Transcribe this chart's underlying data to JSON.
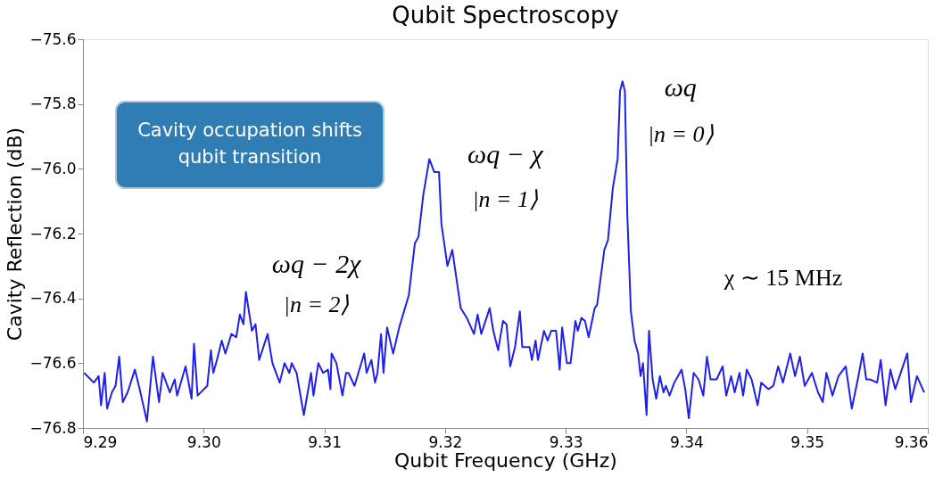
{
  "chart_data": {
    "type": "line",
    "title": "Qubit Spectroscopy",
    "xlabel": "Qubit Frequency (GHz)",
    "ylabel": "Cavity Reflection (dB)",
    "xlim": [
      9.29,
      9.36
    ],
    "xticks": [
      9.29,
      {
        "value": 9.3,
        "label": "9.30"
      },
      9.31,
      9.32,
      9.33,
      9.34,
      9.35,
      9.36
    ],
    "ylim": [
      -76.8,
      -75.6
    ],
    "yticks": [
      -76.8,
      -76.6,
      -76.4,
      -76.2,
      {
        "value": -76.0,
        "label": "−76.0"
      },
      -75.8,
      -75.6
    ],
    "grid": false,
    "marker": "none",
    "line_style": "solid",
    "x": [
      9.2901,
      9.2909,
      9.2913,
      9.2915,
      9.2918,
      9.292,
      9.2924,
      9.2927,
      9.293,
      9.2933,
      9.2937,
      9.2943,
      9.2947,
      9.2953,
      9.2958,
      9.2963,
      9.2966,
      9.2972,
      9.2976,
      9.2978,
      9.2985,
      9.299,
      9.2992,
      9.2995,
      9.3003,
      9.3006,
      9.3008,
      9.3011,
      9.3015,
      9.3018,
      9.3023,
      9.3027,
      9.303,
      9.3033,
      9.3035,
      9.304,
      9.3043,
      9.3046,
      9.3053,
      9.3057,
      9.3063,
      9.3067,
      9.3071,
      9.3073,
      9.3077,
      9.3083,
      9.3089,
      9.3091,
      9.3095,
      9.3099,
      9.3103,
      9.3105,
      9.3106,
      9.311,
      9.3115,
      9.3118,
      9.312,
      9.3125,
      9.3133,
      9.3135,
      9.3139,
      9.3142,
      9.3144,
      9.3147,
      9.3149,
      9.3152,
      9.3157,
      9.3162,
      9.317,
      9.3175,
      9.3178,
      9.3182,
      9.3187,
      9.3191,
      9.3195,
      9.3197,
      9.3202,
      9.3206,
      9.3213,
      9.3218,
      9.3224,
      9.3227,
      9.323,
      9.3237,
      9.324,
      9.3244,
      9.3248,
      9.3251,
      9.3254,
      9.3258,
      9.3262,
      9.3264,
      9.327,
      9.3272,
      9.3275,
      9.3277,
      9.3282,
      9.3285,
      9.3288,
      9.3292,
      9.3295,
      9.3297,
      9.3301,
      9.3304,
      9.3308,
      9.331,
      9.3313,
      9.3316,
      9.3319,
      9.3324,
      9.3326,
      9.3332,
      9.3335,
      9.3339,
      9.3343,
      9.3345,
      9.3347,
      9.3349,
      9.3351,
      9.3354,
      9.3357,
      9.336,
      9.3362,
      9.3364,
      9.3367,
      9.3369,
      9.3372,
      9.3375,
      9.3378,
      9.3381,
      9.3383,
      9.3386,
      9.339,
      9.3396,
      9.3399,
      9.3402,
      9.3406,
      9.341,
      9.3414,
      9.3417,
      9.342,
      9.3425,
      9.343,
      9.3433,
      9.3437,
      9.344,
      9.3444,
      9.3447,
      9.345,
      9.3454,
      9.3459,
      9.3462,
      9.3468,
      9.3472,
      9.3476,
      9.348,
      9.3486,
      9.349,
      9.3494,
      9.3498,
      9.3504,
      9.3509,
      9.3513,
      9.3516,
      9.3521,
      9.3526,
      9.3532,
      9.3537,
      9.3542,
      9.3546,
      9.3549,
      9.3552,
      9.3558,
      9.3561,
      9.3565,
      9.3569,
      9.3573,
      9.3583,
      9.3586,
      9.3591,
      9.3597
    ],
    "series": [
      {
        "color": "#1f1ff0",
        "values": [
          -76.63,
          -76.66,
          -76.64,
          -76.73,
          -76.63,
          -76.74,
          -76.69,
          -76.67,
          -76.58,
          -76.72,
          -76.69,
          -76.62,
          -76.68,
          -76.78,
          -76.58,
          -76.72,
          -76.63,
          -76.69,
          -76.65,
          -76.7,
          -76.61,
          -76.71,
          -76.54,
          -76.7,
          -76.67,
          -76.56,
          -76.63,
          -76.59,
          -76.53,
          -76.57,
          -76.51,
          -76.52,
          -76.45,
          -76.48,
          -76.38,
          -76.5,
          -76.48,
          -76.59,
          -76.51,
          -76.6,
          -76.66,
          -76.6,
          -76.63,
          -76.6,
          -76.63,
          -76.76,
          -76.63,
          -76.7,
          -76.6,
          -76.63,
          -76.62,
          -76.68,
          -76.57,
          -76.6,
          -76.7,
          -76.63,
          -76.63,
          -76.67,
          -76.57,
          -76.63,
          -76.59,
          -76.66,
          -76.63,
          -76.51,
          -76.63,
          -76.49,
          -76.57,
          -76.49,
          -76.39,
          -76.23,
          -76.21,
          -76.08,
          -75.97,
          -76.01,
          -76.01,
          -76.17,
          -76.3,
          -76.25,
          -76.43,
          -76.46,
          -76.51,
          -76.45,
          -76.51,
          -76.43,
          -76.5,
          -76.56,
          -76.47,
          -76.48,
          -76.61,
          -76.55,
          -76.44,
          -76.55,
          -76.55,
          -76.59,
          -76.53,
          -76.59,
          -76.5,
          -76.53,
          -76.5,
          -76.5,
          -76.62,
          -76.49,
          -76.6,
          -76.6,
          -76.47,
          -76.5,
          -76.46,
          -76.47,
          -76.52,
          -76.43,
          -76.42,
          -76.25,
          -76.22,
          -76.06,
          -75.97,
          -75.76,
          -75.73,
          -75.76,
          -76.14,
          -76.44,
          -76.53,
          -76.57,
          -76.64,
          -76.6,
          -76.76,
          -76.5,
          -76.65,
          -76.71,
          -76.64,
          -76.69,
          -76.67,
          -76.7,
          -76.66,
          -76.62,
          -76.68,
          -76.77,
          -76.63,
          -76.65,
          -76.7,
          -76.58,
          -76.65,
          -76.65,
          -76.61,
          -76.7,
          -76.64,
          -76.69,
          -76.63,
          -76.7,
          -76.62,
          -76.65,
          -76.73,
          -76.66,
          -76.68,
          -76.67,
          -76.61,
          -76.66,
          -76.57,
          -76.64,
          -76.58,
          -76.67,
          -76.63,
          -76.69,
          -76.72,
          -76.63,
          -76.7,
          -76.64,
          -76.61,
          -76.74,
          -76.65,
          -76.57,
          -76.65,
          -76.65,
          -76.66,
          -76.59,
          -76.73,
          -76.62,
          -76.68,
          -76.57,
          -76.72,
          -76.64,
          -76.69
        ]
      }
    ],
    "annotations": [
      {
        "text": "ωq − 2χ",
        "x": 9.3035,
        "y": -76.38
      },
      {
        "text": "|n = 2⟩",
        "x": 9.3035,
        "y": -76.38
      },
      {
        "text": "ωq − χ",
        "x": 9.3187,
        "y": -75.97
      },
      {
        "text": "|n = 1⟩",
        "x": 9.3187,
        "y": -75.97
      },
      {
        "text": "ωq",
        "x": 9.3347,
        "y": -75.73
      },
      {
        "text": "|n = 0⟩",
        "x": 9.3347,
        "y": -75.73
      },
      "χ ∼ 15 MHz",
      "Cavity occupation shifts qubit transition"
    ]
  }
}
